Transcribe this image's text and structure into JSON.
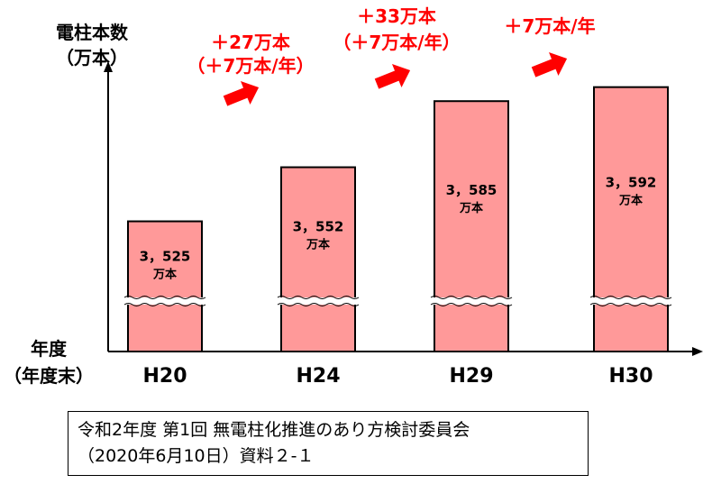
{
  "chart_data": {
    "type": "bar",
    "ylabel_line1": "電柱本数",
    "ylabel_line2": "（万本）",
    "xlabel_line1": "年度",
    "xlabel_line2": "（年度末）",
    "unit": "万本",
    "categories": [
      "H20",
      "H24",
      "H29",
      "H30"
    ],
    "values": [
      3525,
      3552,
      3585,
      3592
    ],
    "value_labels": [
      "3，525",
      "3，552",
      "3，585",
      "3，592"
    ],
    "axis_break": true,
    "increments": [
      {
        "lines": [
          "＋27万本",
          "（＋7万本/年）"
        ]
      },
      {
        "lines": [
          "＋33万本",
          "（＋7万本/年）"
        ]
      },
      {
        "lines": [
          "＋7万本/年"
        ]
      }
    ],
    "bar_color": "#ff9999",
    "arrow_color": "#ff0000",
    "increment_text_color": "#ff0000"
  },
  "source": {
    "line1": "令和2年度 第1回 無電柱化推進のあり方検討委員会",
    "line2": "（2020年6月10日）資料２-１"
  }
}
